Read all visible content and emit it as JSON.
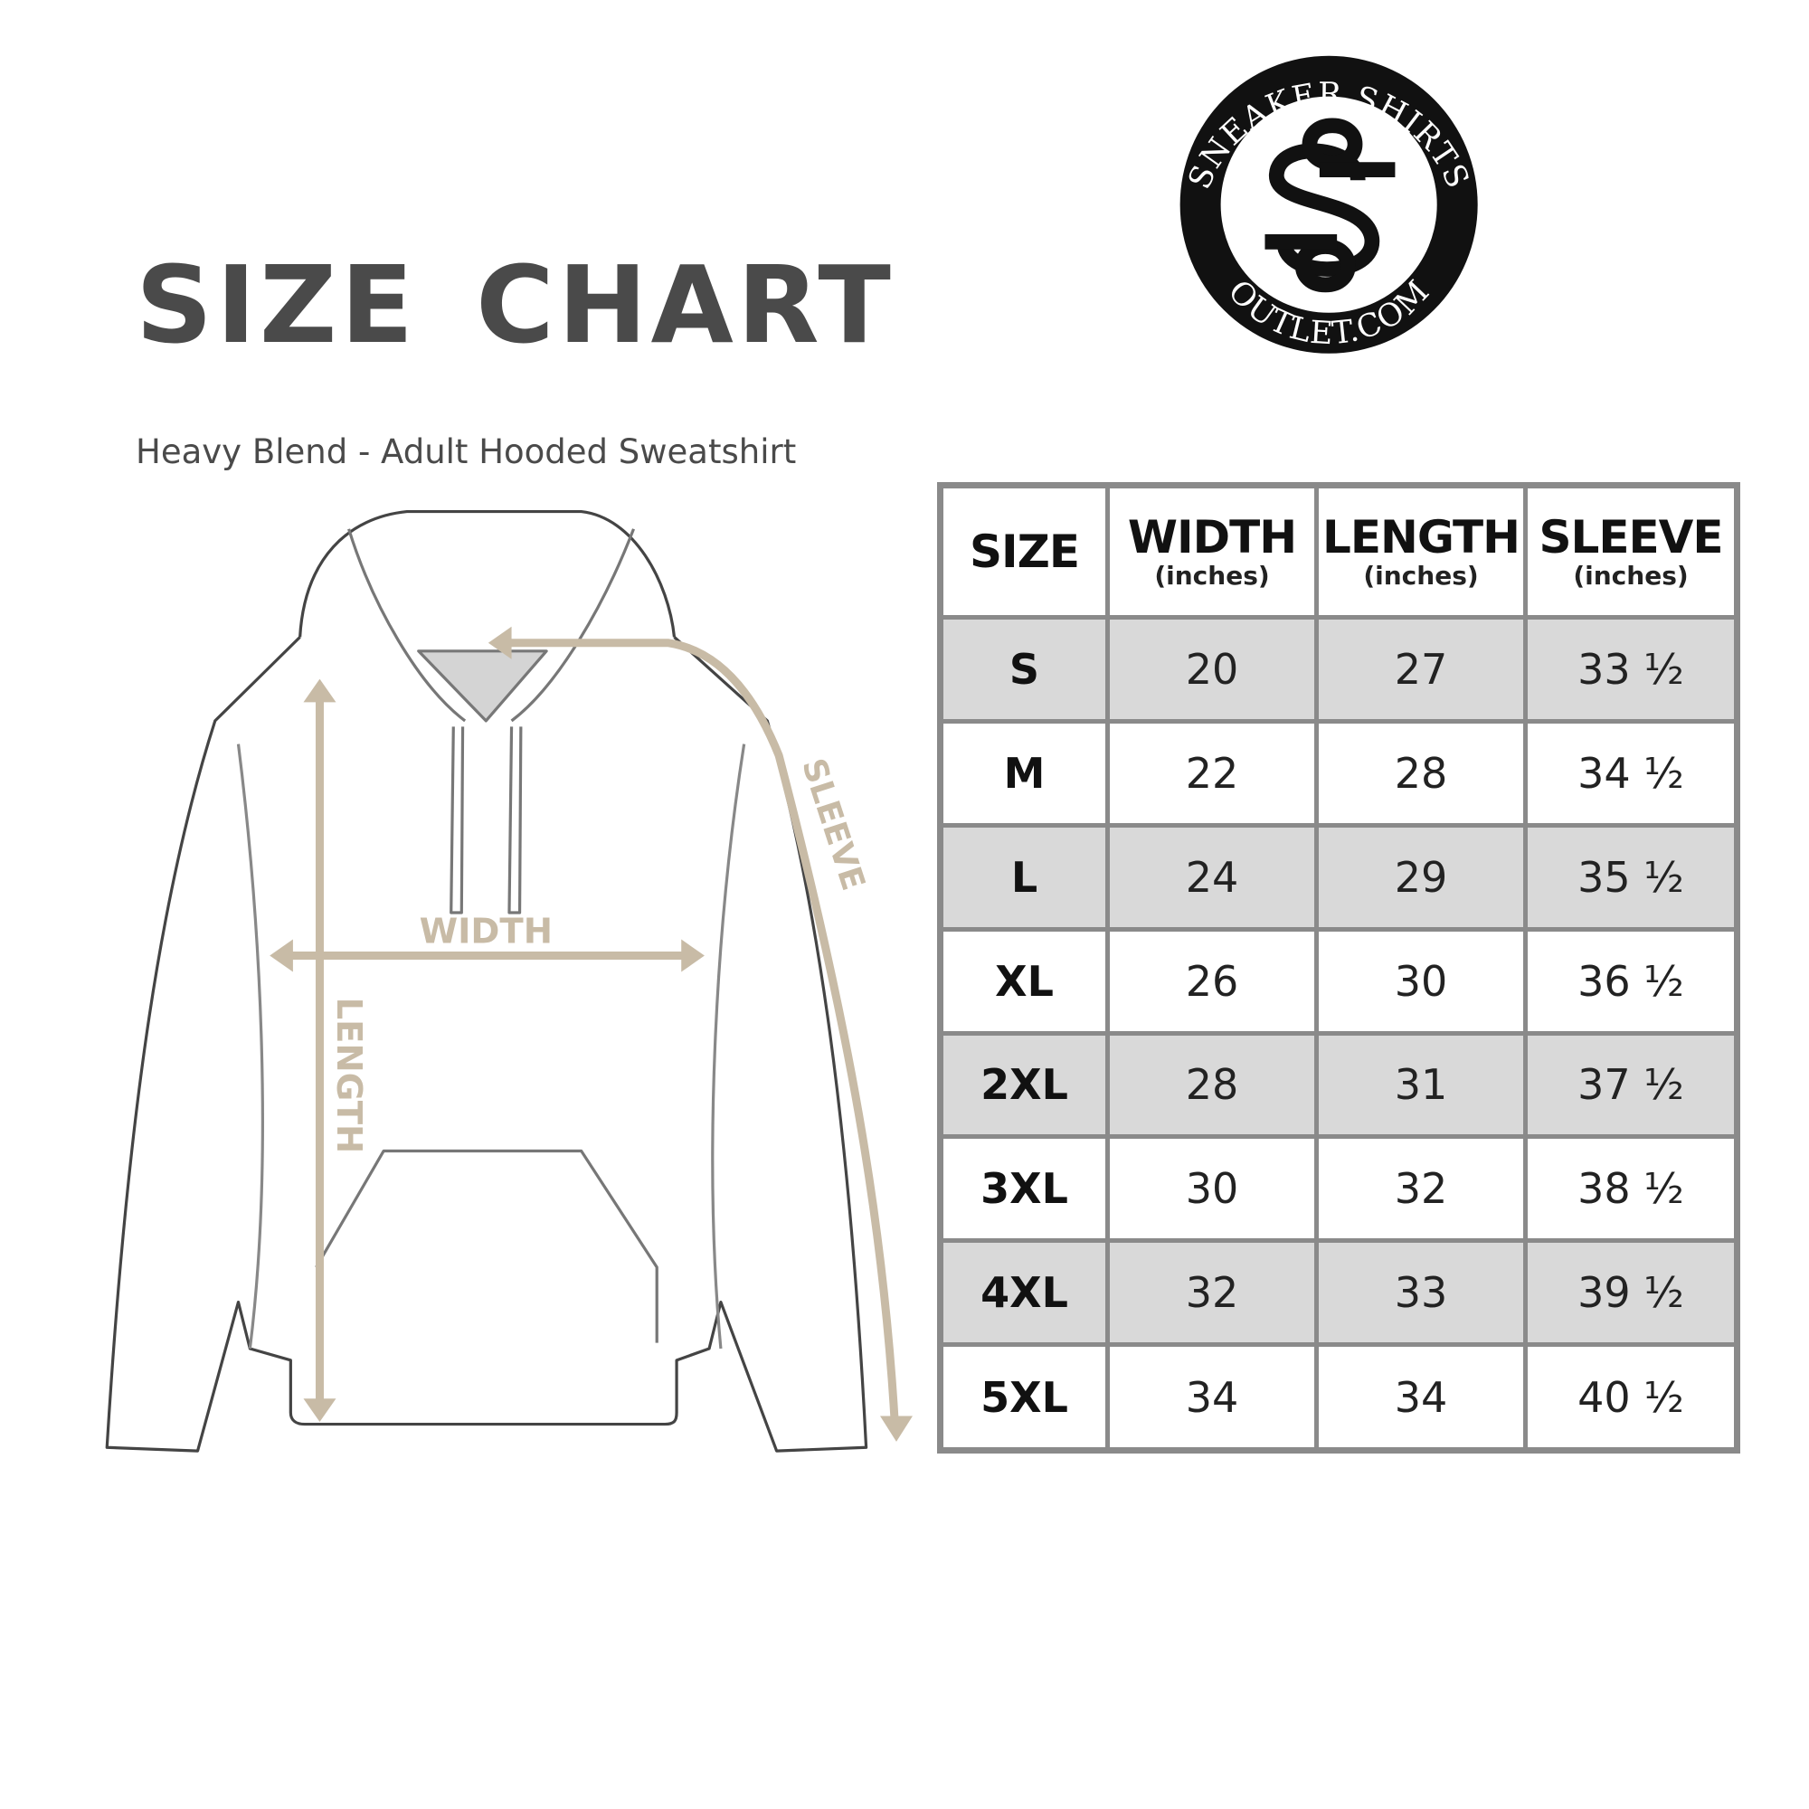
{
  "title": "SIZE CHART",
  "subtitle": "Heavy Blend - Adult Hooded Sweatshirt",
  "logo": {
    "top_text": "SNEAKER SHIRTS",
    "bottom_text": "OUTLET.COM",
    "monogram": "SS"
  },
  "diagram_labels": {
    "width": "WIDTH",
    "length": "LENGTH",
    "sleeve": "SLEEVE"
  },
  "colors": {
    "measure_line": "#c8bba6",
    "row_shade": "#d9d9d9",
    "grid": "#8a8a8a",
    "title": "#4a4a4a"
  },
  "table": {
    "headers": [
      {
        "main": "SIZE",
        "sub": ""
      },
      {
        "main": "WIDTH",
        "sub": "(inches)"
      },
      {
        "main": "LENGTH",
        "sub": "(inches)"
      },
      {
        "main": "SLEEVE",
        "sub": "(inches)"
      }
    ],
    "rows": [
      [
        "S",
        "20",
        "27",
        "33 ½"
      ],
      [
        "M",
        "22",
        "28",
        "34 ½"
      ],
      [
        "L",
        "24",
        "29",
        "35 ½"
      ],
      [
        "XL",
        "26",
        "30",
        "36 ½"
      ],
      [
        "2XL",
        "28",
        "31",
        "37 ½"
      ],
      [
        "3XL",
        "30",
        "32",
        "38 ½"
      ],
      [
        "4XL",
        "32",
        "33",
        "39 ½"
      ],
      [
        "5XL",
        "34",
        "34",
        "40 ½"
      ]
    ]
  }
}
